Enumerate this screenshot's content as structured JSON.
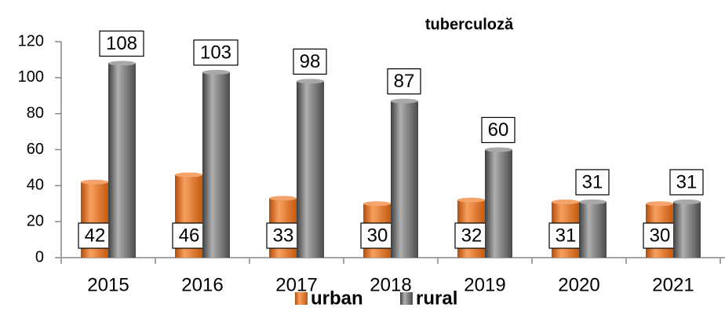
{
  "chart_data": {
    "type": "bar",
    "title": "tuberculoză",
    "categories": [
      "2015",
      "2016",
      "2017",
      "2018",
      "2019",
      "2020",
      "2021"
    ],
    "series": [
      {
        "name": "urban",
        "color": "#e8701e",
        "values": [
          42,
          46,
          33,
          30,
          32,
          31,
          30
        ]
      },
      {
        "name": "rural",
        "color": "#6e6e6e",
        "values": [
          108,
          103,
          98,
          87,
          60,
          31,
          31
        ]
      }
    ],
    "ylim": [
      0,
      120
    ],
    "yticks": [
      0,
      20,
      40,
      60,
      80,
      100,
      120
    ]
  }
}
